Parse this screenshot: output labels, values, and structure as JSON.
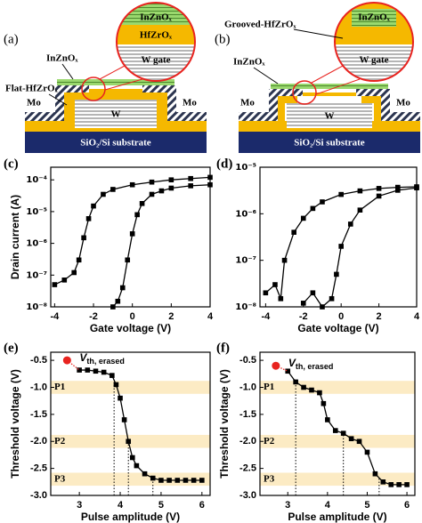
{
  "diagram_a": {
    "label": "(a)",
    "channel": "InZnOₓ",
    "dielectric": "Flat-HfZrOₓ",
    "mo_left": "Mo",
    "mo_right": "Mo",
    "gate": "W",
    "substrate": "SiO₂/Si substrate",
    "zoom": [
      "InZnOₓ",
      "HfZrOₓ",
      "W gate"
    ]
  },
  "diagram_b": {
    "label": "(b)",
    "channel": "InZnOₓ",
    "dielectric": "Grooved-HfZrOₓ",
    "mo_left": "Mo",
    "mo_right": "Mo",
    "gate": "W",
    "substrate": "SiO₂/Si substrate",
    "zoom": [
      "InZnOₓ",
      "W gate"
    ]
  },
  "chart_data": [
    {
      "type": "line",
      "label": "(c)",
      "xlabel": "Gate voltage (V)",
      "ylabel": "Drain current (A)",
      "log_y": true,
      "marker": "square",
      "xlim": [
        -4.2,
        4
      ],
      "xticks": [
        -4,
        -2,
        0,
        2,
        4
      ],
      "ylim": [
        1e-08,
        0.00025
      ],
      "yticks": [
        {
          "value": 1e-08,
          "label": "10⁻⁸"
        },
        {
          "value": 1e-07,
          "label": "10⁻⁷"
        },
        {
          "value": 1e-06,
          "label": "10⁻⁶"
        },
        {
          "value": 1e-05,
          "label": "10⁻⁵"
        },
        {
          "value": 0.0001,
          "label": "10⁻⁴"
        }
      ],
      "series": [
        {
          "color": "#000000",
          "x": [
            -4,
            -3.5,
            -3,
            -2.75,
            -2.5,
            -2.25,
            -2,
            -1.5,
            -1,
            0,
            1,
            2,
            3,
            4
          ],
          "values": [
            5e-08,
            7e-08,
            1.2e-07,
            3e-07,
            1.5e-06,
            6e-06,
            1.5e-05,
            3.5e-05,
            5e-05,
            7e-05,
            8.5e-05,
            0.0001,
            0.00011,
            0.00012
          ]
        },
        {
          "color": "#000000",
          "x": [
            -1,
            -0.75,
            -0.5,
            -0.25,
            0,
            0.25,
            0.5,
            1,
            1.5,
            2,
            3,
            4
          ],
          "values": [
            1e-08,
            1.5e-08,
            4e-08,
            3e-07,
            2e-06,
            8e-06,
            1.8e-05,
            3.5e-05,
            4.5e-05,
            5.5e-05,
            6.5e-05,
            7e-05
          ]
        }
      ]
    },
    {
      "type": "line",
      "label": "(d)",
      "xlabel": "Gate voltage (V)",
      "log_y": true,
      "marker": "square",
      "xlim": [
        -4.3,
        4
      ],
      "xticks": [
        -4,
        -2,
        0,
        2,
        4
      ],
      "ylim": [
        1e-08,
        1e-05
      ],
      "yticks": [
        {
          "value": 1e-08,
          "label": "10⁻⁸"
        },
        {
          "value": 1e-07,
          "label": "10⁻⁷"
        },
        {
          "value": 1e-06,
          "label": "10⁻⁶"
        },
        {
          "value": 1e-05,
          "label": "10⁻⁵"
        }
      ],
      "series": [
        {
          "color": "#000000",
          "x": [
            -4,
            -3.5,
            -3.2,
            -3,
            -2.5,
            -2,
            -1.5,
            -1,
            0,
            1,
            2,
            3,
            4
          ],
          "values": [
            2e-08,
            3e-08,
            1.5e-08,
            1e-07,
            4e-07,
            8e-07,
            1.3e-06,
            1.8e-06,
            2.6e-06,
            3.1e-06,
            3.5e-06,
            3.7e-06,
            3.8e-06
          ]
        },
        {
          "color": "#000000",
          "x": [
            -2,
            -1.5,
            -1,
            -0.5,
            -0.25,
            0,
            0.5,
            1,
            2,
            3,
            4
          ],
          "values": [
            1.2e-08,
            2e-08,
            1e-08,
            1.5e-08,
            5e-08,
            2e-07,
            6e-07,
            1.2e-06,
            2.4e-06,
            3.2e-06,
            3.6e-06
          ]
        }
      ]
    },
    {
      "type": "line",
      "label": "(e)",
      "xlabel": "Pulse amplitude (V)",
      "ylabel": "Threshold voltage (V)",
      "marker": "square",
      "xlim": [
        2.3,
        6.2
      ],
      "xticks": [
        3,
        4,
        5,
        6
      ],
      "ylim": [
        -3.0,
        -0.35
      ],
      "yticks": [
        -0.5,
        {
          "value": -1.0,
          "label": "-1.0"
        },
        -1.5,
        {
          "value": -2.0,
          "label": "-2.0"
        },
        -2.5,
        {
          "value": -3.0,
          "label": "-3.0"
        }
      ],
      "bands": [
        {
          "label": "P1",
          "value": -1.0
        },
        {
          "label": "P2",
          "value": -2.0
        },
        {
          "label": "P3",
          "value": -2.7
        }
      ],
      "markers_x": [
        3.85,
        4.2,
        4.8
      ],
      "erased": {
        "label": "V",
        "label_sub": "th, erased",
        "x": 2.7,
        "y": -0.5,
        "color": "#e8231f"
      },
      "series": [
        {
          "color": "#000000",
          "x": [
            3.0,
            3.2,
            3.4,
            3.6,
            3.8,
            3.9,
            4.0,
            4.1,
            4.2,
            4.3,
            4.4,
            4.6,
            4.8,
            5.0,
            5.2,
            5.4,
            5.6,
            5.8,
            6.0
          ],
          "values": [
            -0.68,
            -0.68,
            -0.7,
            -0.72,
            -0.78,
            -0.95,
            -1.2,
            -1.6,
            -2.0,
            -2.3,
            -2.45,
            -2.6,
            -2.68,
            -2.72,
            -2.72,
            -2.72,
            -2.72,
            -2.72,
            -2.72
          ]
        }
      ]
    },
    {
      "type": "line",
      "label": "(f)",
      "xlabel": "Pulse amplitude (V)",
      "ylabel": "Threshold voltage (V)",
      "marker": "square",
      "xlim": [
        2.3,
        6.2
      ],
      "xticks": [
        3,
        4,
        5,
        6
      ],
      "ylim": [
        -3.0,
        -0.35
      ],
      "yticks": [
        -0.5,
        {
          "value": -1.0,
          "label": "-1.0"
        },
        -1.5,
        {
          "value": -2.0,
          "label": "-2.0"
        },
        -2.5,
        {
          "value": -3.0,
          "label": "-3.0"
        }
      ],
      "bands": [
        {
          "label": "P1",
          "value": -1.0
        },
        {
          "label": "P2",
          "value": -2.0
        },
        {
          "label": "P3",
          "value": -2.7
        }
      ],
      "markers_x": [
        3.2,
        4.4,
        5.3
      ],
      "erased": {
        "label": "V",
        "label_sub": "th, erased",
        "x": 2.7,
        "y": -0.6,
        "color": "#e8231f"
      },
      "series": [
        {
          "color": "#000000",
          "x": [
            3.0,
            3.2,
            3.4,
            3.6,
            3.8,
            3.9,
            4.0,
            4.2,
            4.4,
            4.6,
            4.8,
            5.0,
            5.2,
            5.4,
            5.6,
            5.8,
            6.0
          ],
          "values": [
            -0.7,
            -0.9,
            -1.0,
            -1.05,
            -1.1,
            -1.3,
            -1.6,
            -1.8,
            -1.85,
            -1.95,
            -2.0,
            -2.2,
            -2.6,
            -2.75,
            -2.8,
            -2.8,
            -2.8
          ]
        }
      ]
    }
  ]
}
